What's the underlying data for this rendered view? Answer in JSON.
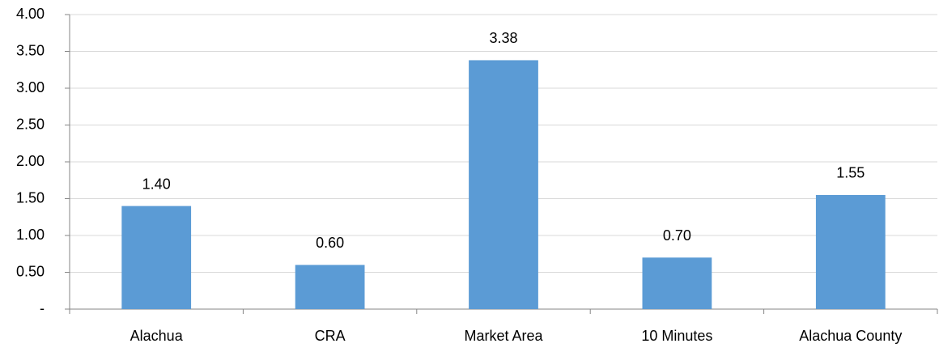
{
  "chart_data": {
    "type": "bar",
    "categories": [
      "Alachua",
      "CRA",
      "Market Area",
      "10 Minutes",
      "Alachua County"
    ],
    "values": [
      1.4,
      0.6,
      3.38,
      0.7,
      1.55
    ],
    "value_labels": [
      "1.40",
      "0.60",
      "3.38",
      "0.70",
      "1.55"
    ],
    "color": "#5b9bd5",
    "ylim": [
      0,
      4
    ],
    "yticks": [
      {
        "value": 0,
        "label": "-"
      },
      {
        "value": 0.5,
        "label": "0.50"
      },
      {
        "value": 1,
        "label": "1.00"
      },
      {
        "value": 1.5,
        "label": "1.50"
      },
      {
        "value": 2,
        "label": "2.00"
      },
      {
        "value": 2.5,
        "label": "2.50"
      },
      {
        "value": 3,
        "label": "3.00"
      },
      {
        "value": 3.5,
        "label": "3.50"
      },
      {
        "value": 4,
        "label": "4.00"
      }
    ],
    "grid": true
  }
}
